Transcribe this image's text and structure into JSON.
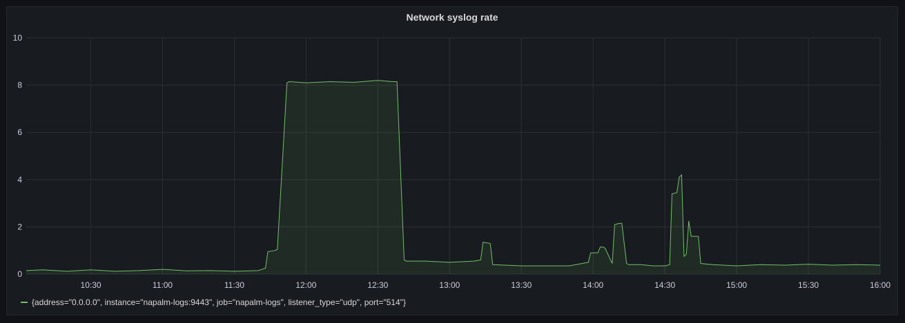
{
  "panel": {
    "title": "Network syslog rate"
  },
  "chart_data": {
    "type": "area",
    "title": "Network syslog rate",
    "xlabel": "",
    "ylabel": "",
    "ylim": [
      0,
      10
    ],
    "xlim": [
      "10:03",
      "16:00"
    ],
    "y_ticks": [
      "0",
      "2",
      "4",
      "6",
      "8",
      "10"
    ],
    "x_ticks": [
      "10:30",
      "11:00",
      "11:30",
      "12:00",
      "12:30",
      "13:00",
      "13:30",
      "14:00",
      "14:30",
      "15:00",
      "15:30",
      "16:00"
    ],
    "grid": true,
    "legend_position": "bottom-left",
    "series": [
      {
        "name": "{address=\"0.0.0.0\", instance=\"napalm-logs:9443\", job=\"napalm-logs\", listener_type=\"udp\", port=\"514\"}",
        "color": "#73bf69",
        "x": [
          "10:03",
          "10:10",
          "10:20",
          "10:30",
          "10:40",
          "10:50",
          "11:00",
          "11:10",
          "11:20",
          "11:30",
          "11:40",
          "11:43",
          "11:44",
          "11:47",
          "11:48",
          "11:52",
          "11:53",
          "12:00",
          "12:10",
          "12:20",
          "12:30",
          "12:36",
          "12:38",
          "12:41",
          "12:42",
          "12:50",
          "13:00",
          "13:10",
          "13:13",
          "13:14",
          "13:17",
          "13:18",
          "13:30",
          "13:40",
          "13:50",
          "13:58",
          "13:59",
          "14:02",
          "14:03",
          "14:04",
          "14:05",
          "14:08",
          "14:09",
          "14:11",
          "14:12",
          "14:14",
          "14:15",
          "14:20",
          "14:25",
          "14:30",
          "14:32",
          "14:33",
          "14:35",
          "14:36",
          "14:37",
          "14:38",
          "14:39",
          "14:40",
          "14:41",
          "14:42",
          "14:44",
          "14:45",
          "14:50",
          "15:00",
          "15:10",
          "15:20",
          "15:30",
          "15:40",
          "15:50",
          "16:00"
        ],
        "values": [
          0.15,
          0.18,
          0.12,
          0.18,
          0.12,
          0.15,
          0.2,
          0.14,
          0.15,
          0.12,
          0.15,
          0.25,
          0.95,
          1.0,
          1.05,
          8.1,
          8.15,
          8.1,
          8.15,
          8.12,
          8.2,
          8.15,
          8.15,
          0.6,
          0.55,
          0.55,
          0.5,
          0.55,
          0.6,
          1.35,
          1.3,
          0.4,
          0.35,
          0.35,
          0.35,
          0.5,
          0.9,
          0.9,
          1.15,
          1.15,
          1.1,
          0.45,
          2.1,
          2.15,
          2.15,
          0.45,
          0.4,
          0.4,
          0.35,
          0.35,
          0.4,
          3.4,
          3.45,
          4.1,
          4.2,
          0.75,
          0.85,
          2.25,
          1.6,
          1.6,
          1.6,
          0.45,
          0.4,
          0.35,
          0.4,
          0.38,
          0.42,
          0.38,
          0.4,
          0.38
        ]
      }
    ]
  }
}
